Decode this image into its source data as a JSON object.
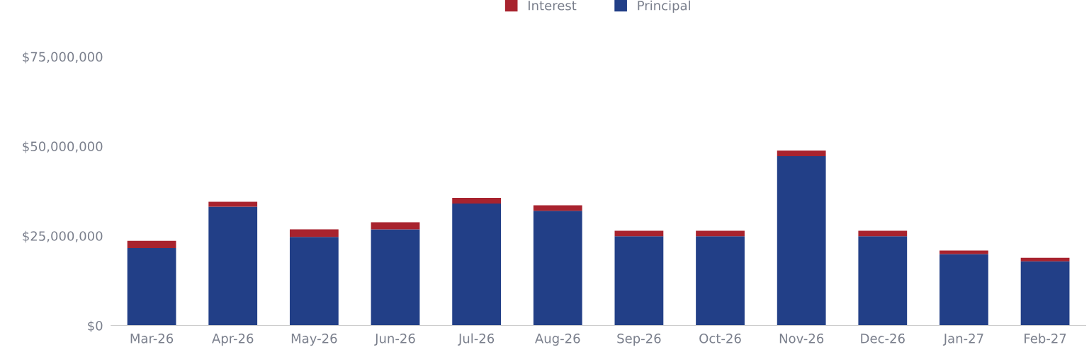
{
  "chart_data": {
    "type": "bar",
    "stacked": true,
    "categories": [
      "Mar-26",
      "Apr-26",
      "May-26",
      "Jun-26",
      "Jul-26",
      "Aug-26",
      "Sep-26",
      "Oct-26",
      "Nov-26",
      "Dec-26",
      "Jan-27",
      "Feb-27"
    ],
    "series": [
      {
        "name": "Principal",
        "color": "#223f87",
        "values": [
          21600000,
          33100000,
          24700000,
          26800000,
          34000000,
          32000000,
          24900000,
          24900000,
          47200000,
          24900000,
          19900000,
          17900000
        ]
      },
      {
        "name": "Interest",
        "color": "#a8232e",
        "values": [
          2000000,
          1400000,
          2100000,
          2000000,
          1600000,
          1500000,
          1500000,
          1500000,
          1600000,
          1500000,
          1000000,
          1000000
        ]
      }
    ],
    "ylim": [
      0,
      75000000
    ],
    "yticks": [
      {
        "value": 0,
        "label": "$0"
      },
      {
        "value": 25000000,
        "label": "$25,000,000"
      },
      {
        "value": 50000000,
        "label": "$50,000,000"
      },
      {
        "value": 75000000,
        "label": "$75,000,000"
      }
    ],
    "grid": false,
    "legend": "top"
  }
}
